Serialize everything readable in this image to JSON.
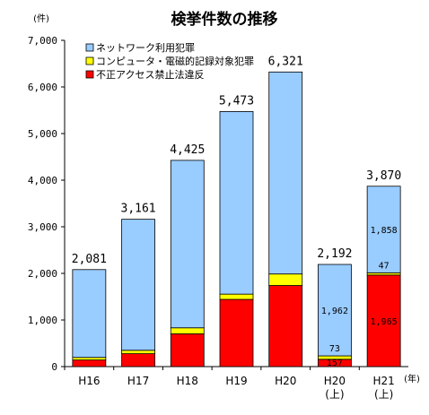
{
  "chart_data": {
    "type": "bar",
    "stacked": true,
    "title": "検挙件数の推移",
    "y_unit": "(件)",
    "x_unit": "(年)",
    "ylim": [
      0,
      7000
    ],
    "y_ticks": [
      "0",
      "1,000",
      "2,000",
      "3,000",
      "4,000",
      "5,000",
      "6,000",
      "7,000"
    ],
    "grid": false,
    "legend_position": "top-left",
    "categories": [
      {
        "line1": "H16",
        "line2": ""
      },
      {
        "line1": "H17",
        "line2": ""
      },
      {
        "line1": "H18",
        "line2": ""
      },
      {
        "line1": "H19",
        "line2": ""
      },
      {
        "line1": "H20",
        "line2": ""
      },
      {
        "line1": "H20",
        "line2": "(上)"
      },
      {
        "line1": "H21",
        "line2": "(上)"
      }
    ],
    "totals": [
      "2,081",
      "3,161",
      "4,425",
      "5,473",
      "6,321",
      "2,192",
      "3,870"
    ],
    "series": [
      {
        "name": "不正アクセス禁止法違反",
        "color": "#ff0000",
        "values": [
          142,
          277,
          703,
          1442,
          1740,
          157,
          1965
        ]
      },
      {
        "name": "コンピュータ・電磁的記録対象犯罪",
        "color": "#ffff00",
        "values": [
          55,
          73,
          129,
          113,
          247,
          73,
          47
        ]
      },
      {
        "name": "ネットワーク利用犯罪",
        "color": "#99ccff",
        "values": [
          1884,
          2811,
          3593,
          3918,
          4334,
          1962,
          1858
        ]
      }
    ],
    "segment_labels": [
      {
        "category_index": 5,
        "series_index": 0,
        "text": "157"
      },
      {
        "category_index": 5,
        "series_index": 1,
        "text": "73"
      },
      {
        "category_index": 5,
        "series_index": 2,
        "text": "1,962"
      },
      {
        "category_index": 6,
        "series_index": 0,
        "text": "1,965"
      },
      {
        "category_index": 6,
        "series_index": 1,
        "text": "47"
      },
      {
        "category_index": 6,
        "series_index": 2,
        "text": "1,858"
      }
    ]
  }
}
